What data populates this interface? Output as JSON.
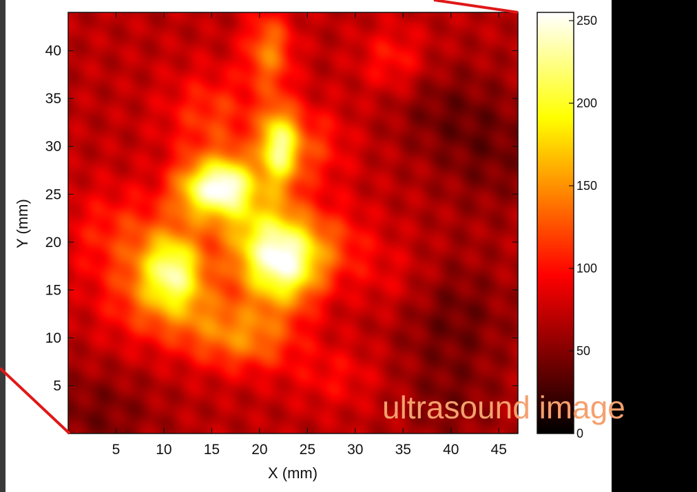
{
  "chart_data": {
    "type": "heatmap",
    "xlabel": "X (mm)",
    "ylabel": "Y (mm)",
    "xlim": [
      0,
      47
    ],
    "ylim": [
      0,
      44
    ],
    "xticks": [
      5,
      10,
      15,
      20,
      25,
      30,
      35,
      40,
      45
    ],
    "yticks": [
      5,
      10,
      15,
      20,
      25,
      30,
      35,
      40
    ],
    "colorbar": {
      "colormap": "hot",
      "range": [
        0,
        255
      ],
      "ticks": [
        0,
        50,
        100,
        150,
        200,
        250
      ]
    },
    "background_level": 70,
    "hotspots": [
      {
        "x": 22.5,
        "y": 18,
        "sx": 2.8,
        "sy": 3.2,
        "a": 165
      },
      {
        "x": 11,
        "y": 17,
        "sx": 2.2,
        "sy": 2.8,
        "a": 125
      },
      {
        "x": 14,
        "y": 25.5,
        "sx": 2.2,
        "sy": 2.2,
        "a": 115
      },
      {
        "x": 17,
        "y": 26,
        "sx": 1.8,
        "sy": 2.0,
        "a": 100
      },
      {
        "x": 22,
        "y": 30,
        "sx": 1.4,
        "sy": 2.8,
        "a": 125
      },
      {
        "x": 19,
        "y": 22,
        "sx": 3.0,
        "sy": 4.0,
        "a": 70
      },
      {
        "x": 25,
        "y": 30,
        "sx": 3.0,
        "sy": 3.0,
        "a": 45
      },
      {
        "x": 15,
        "y": 33,
        "sx": 3.5,
        "sy": 3.5,
        "a": 45
      },
      {
        "x": 21,
        "y": 40,
        "sx": 1.8,
        "sy": 3.0,
        "a": 70
      },
      {
        "x": 19,
        "y": 10,
        "sx": 3.5,
        "sy": 2.5,
        "a": 65
      },
      {
        "x": 8,
        "y": 14,
        "sx": 3.5,
        "sy": 3.5,
        "a": 45
      },
      {
        "x": 6,
        "y": 21,
        "sx": 4.5,
        "sy": 3.5,
        "a": 40
      },
      {
        "x": 34,
        "y": 39,
        "sx": 2.5,
        "sy": 2.5,
        "a": 35
      },
      {
        "x": 28,
        "y": 20,
        "sx": 3.0,
        "sy": 3.0,
        "a": 35
      },
      {
        "x": 14,
        "y": 12,
        "sx": 3.0,
        "sy": 3.0,
        "a": 40
      },
      {
        "x": 28,
        "y": 6,
        "sx": 3.5,
        "sy": 2.5,
        "a": 25
      },
      {
        "x": 34,
        "y": 16,
        "sx": 3.0,
        "sy": 3.0,
        "a": 20
      }
    ],
    "dark_regions": [
      {
        "x": 40,
        "y": 12,
        "sx": 4.5,
        "sy": 4.5,
        "a": 30
      },
      {
        "x": 44,
        "y": 30,
        "sx": 4.0,
        "sy": 5.0,
        "a": 28
      },
      {
        "x": 3,
        "y": 2,
        "sx": 4.5,
        "sy": 3.5,
        "a": 25
      },
      {
        "x": 40,
        "y": 3,
        "sx": 4.0,
        "sy": 3.0,
        "a": 20
      },
      {
        "x": 38,
        "y": 34,
        "sx": 3.5,
        "sy": 3.5,
        "a": 20
      }
    ]
  },
  "overlay": {
    "label": "ultrasound image",
    "label_color": "#F4A06E",
    "line_color": "#E01818"
  },
  "colors": {
    "panel_bg": "#FFFFFF",
    "page_bg": "#000000",
    "axis_color": "#111111"
  }
}
